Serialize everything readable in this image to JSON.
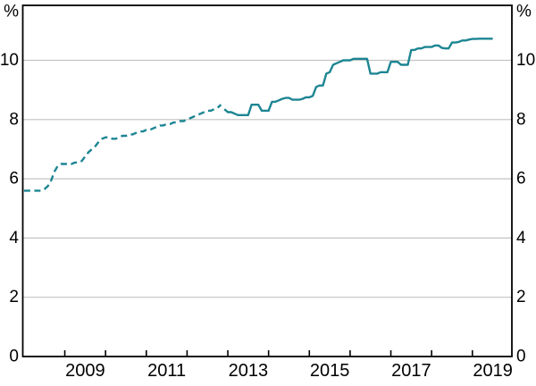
{
  "chart_data": {
    "type": "line",
    "title": "",
    "unit_left": "%",
    "unit_right": "%",
    "ylim": [
      0,
      11.85
    ],
    "yticks": [
      0,
      2,
      4,
      6,
      8,
      10
    ],
    "ytick_labels": [
      "0",
      "2",
      "4",
      "6",
      "8",
      "10"
    ],
    "x_start_year": 2008,
    "x_end_year": 2020,
    "xtick_minor_years": [
      2009,
      2010,
      2011,
      2012,
      2013,
      2014,
      2015,
      2016,
      2017,
      2018,
      2019
    ],
    "xtick_labeled_years": [
      "2009",
      "2011",
      "2013",
      "2015",
      "2017",
      "2019"
    ],
    "grid_on": true,
    "legend_position": "none",
    "line_color": "#1d8593",
    "grid_color": "#c3c3c3",
    "axis_color": "#000000",
    "series": [
      {
        "name": "historical-spliced-series",
        "style": "dashed",
        "start": "2008-01",
        "freq": "monthly",
        "values": [
          5.6,
          5.6,
          5.6,
          5.6,
          5.6,
          5.6,
          5.65,
          5.75,
          5.95,
          6.25,
          6.45,
          6.5,
          6.5,
          6.5,
          6.5,
          6.55,
          6.55,
          6.6,
          6.75,
          6.9,
          7.0,
          7.1,
          7.25,
          7.35,
          7.4,
          7.4,
          7.35,
          7.35,
          7.4,
          7.45,
          7.45,
          7.5,
          7.5,
          7.55,
          7.6,
          7.6,
          7.65,
          7.65,
          7.7,
          7.75,
          7.8,
          7.8,
          7.85,
          7.85,
          7.9,
          7.9,
          7.95,
          7.95,
          8.0,
          8.05,
          8.1,
          8.15,
          8.2,
          8.25,
          8.3,
          8.3,
          8.35,
          8.4,
          8.5
        ]
      },
      {
        "name": "current-series",
        "style": "solid",
        "start": "2012-12",
        "freq": "monthly",
        "values": [
          8.35,
          8.25,
          8.25,
          8.2,
          8.15,
          8.15,
          8.15,
          8.15,
          8.5,
          8.5,
          8.5,
          8.3,
          8.3,
          8.3,
          8.6,
          8.6,
          8.65,
          8.7,
          8.73,
          8.73,
          8.67,
          8.67,
          8.67,
          8.7,
          8.75,
          8.75,
          8.8,
          9.1,
          9.15,
          9.15,
          9.55,
          9.6,
          9.85,
          9.9,
          9.95,
          10.0,
          10.0,
          10.0,
          10.05,
          10.05,
          10.05,
          10.05,
          10.05,
          9.55,
          9.55,
          9.55,
          9.6,
          9.6,
          9.6,
          9.95,
          9.95,
          9.95,
          9.85,
          9.85,
          9.85,
          10.35,
          10.35,
          10.4,
          10.4,
          10.45,
          10.45,
          10.45,
          10.5,
          10.5,
          10.42,
          10.4,
          10.4,
          10.6,
          10.6,
          10.62,
          10.67,
          10.67,
          10.7,
          10.72,
          10.72,
          10.73,
          10.73,
          10.73,
          10.73,
          10.73
        ]
      }
    ]
  },
  "labels": {
    "percent_left": "%",
    "percent_right": "%"
  }
}
